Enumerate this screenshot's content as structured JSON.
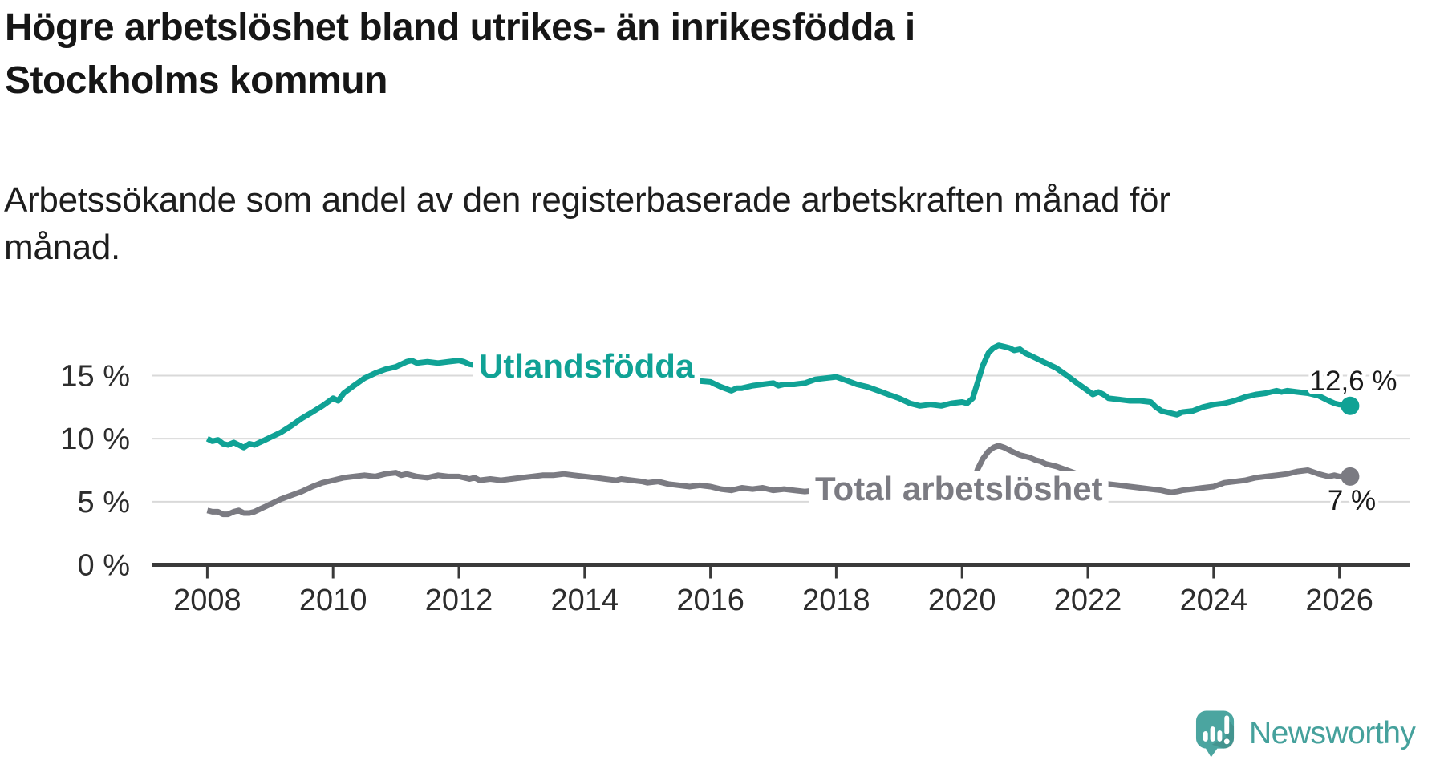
{
  "header": {
    "title": "Högre arbetslöshet bland utrikes- än inrikesfödda i\nStockholms kommun",
    "subtitle": "Arbetssökande som andel av den registerbaserade arbetskraften månad för\nmånad."
  },
  "footer": {
    "brand": "Newsworthy"
  },
  "colors": {
    "teal_series": "#10a295",
    "gray_series": "#7b7b82",
    "grid": "#d9d9d9",
    "axis": "#3a3a3a",
    "text_dark": "#1b1b1b",
    "logo_teal": "#4BA5A0"
  },
  "chart_data": {
    "type": "line",
    "title": "Högre arbetslöshet bland utrikes- än inrikesfödda i Stockholms kommun",
    "subtitle": "Arbetssökande som andel av den registerbaserade arbetskraften månad för månad.",
    "grid": true,
    "legend_position": "inline-labels",
    "x_axis": {
      "ticks": [
        2008,
        2010,
        2012,
        2014,
        2016,
        2018,
        2020,
        2022,
        2024,
        2026
      ],
      "tick_labels": [
        "2008",
        "2010",
        "2012",
        "2014",
        "2016",
        "2018",
        "2020",
        "2022",
        "2024",
        "2026"
      ],
      "range": [
        2007.1,
        2027.1
      ]
    },
    "y_axis": {
      "unit": "%",
      "tick_values": [
        0,
        5,
        10,
        15
      ],
      "tick_labels": [
        "0 %",
        "5 %",
        "10 %",
        "15 %"
      ],
      "gridline_values": [
        5,
        10,
        15
      ],
      "range": [
        0,
        18.5
      ]
    },
    "series": [
      {
        "name": "Utlandsfödda",
        "color": "#10a295",
        "end_value": 12.6,
        "end_label": "12,6 %",
        "points": [
          [
            2008.0,
            10.0
          ],
          [
            2008.08,
            9.8
          ],
          [
            2008.17,
            9.9
          ],
          [
            2008.25,
            9.6
          ],
          [
            2008.33,
            9.5
          ],
          [
            2008.42,
            9.7
          ],
          [
            2008.5,
            9.5
          ],
          [
            2008.58,
            9.3
          ],
          [
            2008.67,
            9.6
          ],
          [
            2008.75,
            9.5
          ],
          [
            2008.83,
            9.7
          ],
          [
            2008.92,
            9.9
          ],
          [
            2009.0,
            10.1
          ],
          [
            2009.17,
            10.5
          ],
          [
            2009.33,
            11.0
          ],
          [
            2009.5,
            11.6
          ],
          [
            2009.67,
            12.1
          ],
          [
            2009.83,
            12.6
          ],
          [
            2010.0,
            13.2
          ],
          [
            2010.08,
            13.0
          ],
          [
            2010.17,
            13.6
          ],
          [
            2010.33,
            14.2
          ],
          [
            2010.5,
            14.8
          ],
          [
            2010.67,
            15.2
          ],
          [
            2010.83,
            15.5
          ],
          [
            2011.0,
            15.7
          ],
          [
            2011.17,
            16.1
          ],
          [
            2011.25,
            16.2
          ],
          [
            2011.33,
            16.0
          ],
          [
            2011.5,
            16.1
          ],
          [
            2011.67,
            16.0
          ],
          [
            2011.83,
            16.1
          ],
          [
            2012.0,
            16.2
          ],
          [
            2012.08,
            16.1
          ],
          [
            2012.17,
            15.9
          ],
          [
            2012.3,
            15.8
          ],
          [
            2012.5,
            15.7
          ],
          [
            2012.75,
            15.8
          ],
          [
            2013.0,
            15.9
          ],
          [
            2013.25,
            16.0
          ],
          [
            2013.5,
            15.9
          ],
          [
            2013.75,
            15.7
          ],
          [
            2014.0,
            15.6
          ],
          [
            2014.25,
            15.4
          ],
          [
            2014.5,
            15.2
          ],
          [
            2014.75,
            15.0
          ],
          [
            2015.0,
            14.9
          ],
          [
            2015.25,
            14.8
          ],
          [
            2015.5,
            14.7
          ],
          [
            2015.75,
            14.6
          ],
          [
            2016.0,
            14.5
          ],
          [
            2016.08,
            14.3
          ],
          [
            2016.17,
            14.1
          ],
          [
            2016.33,
            13.8
          ],
          [
            2016.42,
            14.0
          ],
          [
            2016.5,
            14.0
          ],
          [
            2016.67,
            14.2
          ],
          [
            2016.83,
            14.3
          ],
          [
            2017.0,
            14.4
          ],
          [
            2017.08,
            14.2
          ],
          [
            2017.17,
            14.3
          ],
          [
            2017.33,
            14.3
          ],
          [
            2017.5,
            14.4
          ],
          [
            2017.67,
            14.7
          ],
          [
            2017.83,
            14.8
          ],
          [
            2018.0,
            14.9
          ],
          [
            2018.17,
            14.6
          ],
          [
            2018.33,
            14.3
          ],
          [
            2018.5,
            14.1
          ],
          [
            2018.67,
            13.8
          ],
          [
            2018.83,
            13.5
          ],
          [
            2019.0,
            13.2
          ],
          [
            2019.17,
            12.8
          ],
          [
            2019.33,
            12.6
          ],
          [
            2019.5,
            12.7
          ],
          [
            2019.67,
            12.6
          ],
          [
            2019.83,
            12.8
          ],
          [
            2020.0,
            12.9
          ],
          [
            2020.08,
            12.8
          ],
          [
            2020.17,
            13.2
          ],
          [
            2020.25,
            14.5
          ],
          [
            2020.33,
            15.8
          ],
          [
            2020.42,
            16.8
          ],
          [
            2020.5,
            17.2
          ],
          [
            2020.58,
            17.4
          ],
          [
            2020.67,
            17.3
          ],
          [
            2020.75,
            17.2
          ],
          [
            2020.83,
            17.0
          ],
          [
            2020.92,
            17.1
          ],
          [
            2021.0,
            16.8
          ],
          [
            2021.17,
            16.4
          ],
          [
            2021.33,
            16.0
          ],
          [
            2021.5,
            15.6
          ],
          [
            2021.67,
            15.0
          ],
          [
            2021.83,
            14.4
          ],
          [
            2022.0,
            13.8
          ],
          [
            2022.08,
            13.5
          ],
          [
            2022.17,
            13.7
          ],
          [
            2022.25,
            13.5
          ],
          [
            2022.33,
            13.2
          ],
          [
            2022.5,
            13.1
          ],
          [
            2022.67,
            13.0
          ],
          [
            2022.83,
            13.0
          ],
          [
            2023.0,
            12.9
          ],
          [
            2023.08,
            12.5
          ],
          [
            2023.17,
            12.2
          ],
          [
            2023.33,
            12.0
          ],
          [
            2023.42,
            11.9
          ],
          [
            2023.5,
            12.1
          ],
          [
            2023.67,
            12.2
          ],
          [
            2023.83,
            12.5
          ],
          [
            2024.0,
            12.7
          ],
          [
            2024.17,
            12.8
          ],
          [
            2024.33,
            13.0
          ],
          [
            2024.5,
            13.3
          ],
          [
            2024.67,
            13.5
          ],
          [
            2024.83,
            13.6
          ],
          [
            2025.0,
            13.8
          ],
          [
            2025.08,
            13.7
          ],
          [
            2025.17,
            13.8
          ],
          [
            2025.33,
            13.7
          ],
          [
            2025.5,
            13.6
          ],
          [
            2025.67,
            13.4
          ],
          [
            2025.83,
            13.0
          ],
          [
            2025.92,
            12.8
          ],
          [
            2026.0,
            12.7
          ],
          [
            2026.17,
            12.6
          ]
        ]
      },
      {
        "name": "Total arbetslöshet",
        "color": "#7b7b82",
        "end_value": 7.0,
        "end_label": "7 %",
        "points": [
          [
            2008.0,
            4.3
          ],
          [
            2008.08,
            4.2
          ],
          [
            2008.17,
            4.2
          ],
          [
            2008.25,
            4.0
          ],
          [
            2008.33,
            4.0
          ],
          [
            2008.42,
            4.2
          ],
          [
            2008.5,
            4.3
          ],
          [
            2008.58,
            4.1
          ],
          [
            2008.67,
            4.1
          ],
          [
            2008.75,
            4.2
          ],
          [
            2008.83,
            4.4
          ],
          [
            2008.92,
            4.6
          ],
          [
            2009.0,
            4.8
          ],
          [
            2009.17,
            5.2
          ],
          [
            2009.33,
            5.5
          ],
          [
            2009.5,
            5.8
          ],
          [
            2009.67,
            6.2
          ],
          [
            2009.83,
            6.5
          ],
          [
            2010.0,
            6.7
          ],
          [
            2010.17,
            6.9
          ],
          [
            2010.33,
            7.0
          ],
          [
            2010.5,
            7.1
          ],
          [
            2010.67,
            7.0
          ],
          [
            2010.83,
            7.2
          ],
          [
            2011.0,
            7.3
          ],
          [
            2011.08,
            7.1
          ],
          [
            2011.17,
            7.2
          ],
          [
            2011.33,
            7.0
          ],
          [
            2011.5,
            6.9
          ],
          [
            2011.67,
            7.1
          ],
          [
            2011.83,
            7.0
          ],
          [
            2012.0,
            7.0
          ],
          [
            2012.17,
            6.8
          ],
          [
            2012.25,
            6.9
          ],
          [
            2012.33,
            6.7
          ],
          [
            2012.5,
            6.8
          ],
          [
            2012.67,
            6.7
          ],
          [
            2012.83,
            6.8
          ],
          [
            2013.0,
            6.9
          ],
          [
            2013.17,
            7.0
          ],
          [
            2013.33,
            7.1
          ],
          [
            2013.5,
            7.1
          ],
          [
            2013.67,
            7.2
          ],
          [
            2013.83,
            7.1
          ],
          [
            2014.0,
            7.0
          ],
          [
            2014.17,
            6.9
          ],
          [
            2014.33,
            6.8
          ],
          [
            2014.5,
            6.7
          ],
          [
            2014.58,
            6.8
          ],
          [
            2014.75,
            6.7
          ],
          [
            2014.92,
            6.6
          ],
          [
            2015.0,
            6.5
          ],
          [
            2015.17,
            6.6
          ],
          [
            2015.33,
            6.4
          ],
          [
            2015.5,
            6.3
          ],
          [
            2015.67,
            6.2
          ],
          [
            2015.83,
            6.3
          ],
          [
            2016.0,
            6.2
          ],
          [
            2016.17,
            6.0
          ],
          [
            2016.33,
            5.9
          ],
          [
            2016.5,
            6.1
          ],
          [
            2016.67,
            6.0
          ],
          [
            2016.83,
            6.1
          ],
          [
            2017.0,
            5.9
          ],
          [
            2017.17,
            6.0
          ],
          [
            2017.33,
            5.9
          ],
          [
            2017.5,
            5.8
          ],
          [
            2017.67,
            5.9
          ],
          [
            2017.83,
            5.8
          ],
          [
            2018.0,
            5.7
          ],
          [
            2018.25,
            5.6
          ],
          [
            2018.5,
            5.5
          ],
          [
            2018.75,
            5.6
          ],
          [
            2019.0,
            5.8
          ],
          [
            2019.25,
            5.9
          ],
          [
            2019.5,
            5.8
          ],
          [
            2019.75,
            5.9
          ],
          [
            2020.0,
            6.0
          ],
          [
            2020.08,
            6.1
          ],
          [
            2020.17,
            6.5
          ],
          [
            2020.25,
            7.6
          ],
          [
            2020.33,
            8.4
          ],
          [
            2020.42,
            9.0
          ],
          [
            2020.5,
            9.3
          ],
          [
            2020.58,
            9.45
          ],
          [
            2020.67,
            9.3
          ],
          [
            2020.75,
            9.1
          ],
          [
            2020.83,
            8.9
          ],
          [
            2020.92,
            8.7
          ],
          [
            2021.0,
            8.6
          ],
          [
            2021.08,
            8.5
          ],
          [
            2021.17,
            8.3
          ],
          [
            2021.25,
            8.2
          ],
          [
            2021.33,
            8.0
          ],
          [
            2021.5,
            7.8
          ],
          [
            2021.67,
            7.5
          ],
          [
            2021.83,
            7.2
          ],
          [
            2022.0,
            6.9
          ],
          [
            2022.17,
            6.6
          ],
          [
            2022.33,
            6.4
          ],
          [
            2022.5,
            6.3
          ],
          [
            2022.67,
            6.2
          ],
          [
            2022.83,
            6.1
          ],
          [
            2023.0,
            6.0
          ],
          [
            2023.17,
            5.9
          ],
          [
            2023.25,
            5.8
          ],
          [
            2023.33,
            5.75
          ],
          [
            2023.42,
            5.8
          ],
          [
            2023.5,
            5.9
          ],
          [
            2023.67,
            6.0
          ],
          [
            2023.83,
            6.1
          ],
          [
            2024.0,
            6.2
          ],
          [
            2024.17,
            6.5
          ],
          [
            2024.33,
            6.6
          ],
          [
            2024.5,
            6.7
          ],
          [
            2024.67,
            6.9
          ],
          [
            2024.83,
            7.0
          ],
          [
            2025.0,
            7.1
          ],
          [
            2025.17,
            7.2
          ],
          [
            2025.33,
            7.4
          ],
          [
            2025.5,
            7.5
          ],
          [
            2025.67,
            7.2
          ],
          [
            2025.83,
            7.0
          ],
          [
            2025.92,
            7.1
          ],
          [
            2026.0,
            7.0
          ],
          [
            2026.17,
            7.0
          ]
        ]
      }
    ]
  }
}
